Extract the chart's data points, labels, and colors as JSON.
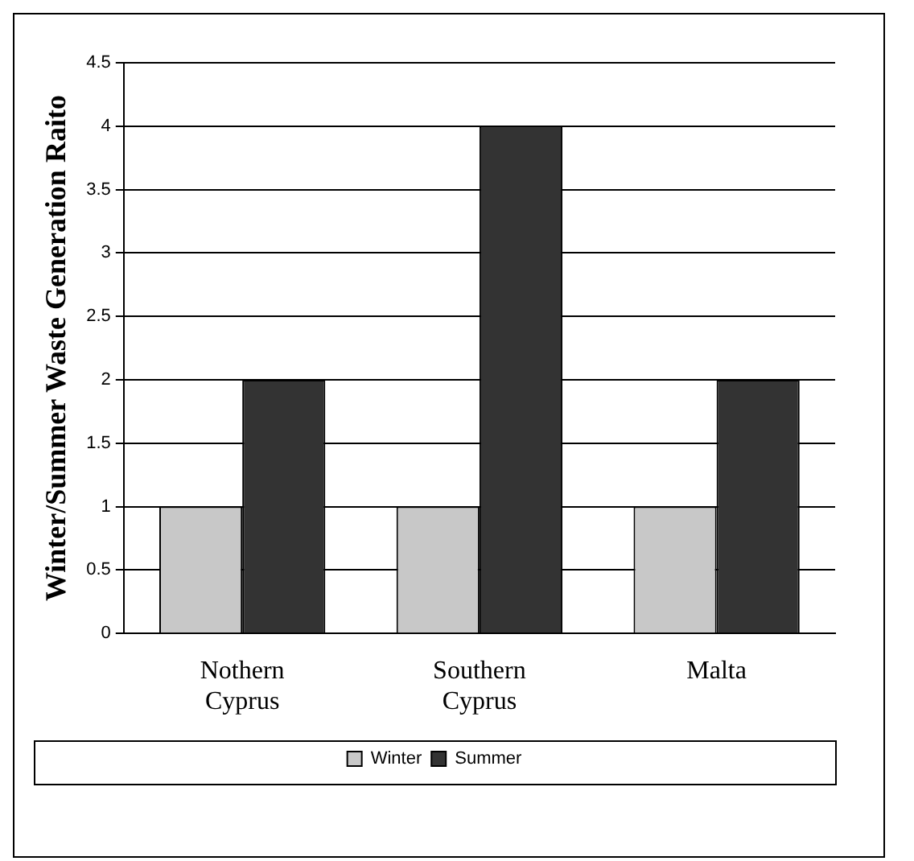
{
  "chart_data": {
    "type": "bar",
    "ylabel": "Winter/Summer Waste Generation Raito",
    "categories": [
      "Nothern Cyprus",
      "Southern Cyprus",
      "Malta"
    ],
    "series": [
      {
        "name": "Winter",
        "color": "#c8c8c8",
        "values": [
          1,
          1,
          1
        ]
      },
      {
        "name": "Summer",
        "color": "#333333",
        "values": [
          2,
          4,
          2
        ]
      }
    ],
    "ylim": [
      0,
      4.5
    ],
    "yticks": [
      0,
      0.5,
      1,
      1.5,
      2,
      2.5,
      3,
      3.5,
      4,
      4.5
    ],
    "grid": "y",
    "legend": "bottom"
  }
}
